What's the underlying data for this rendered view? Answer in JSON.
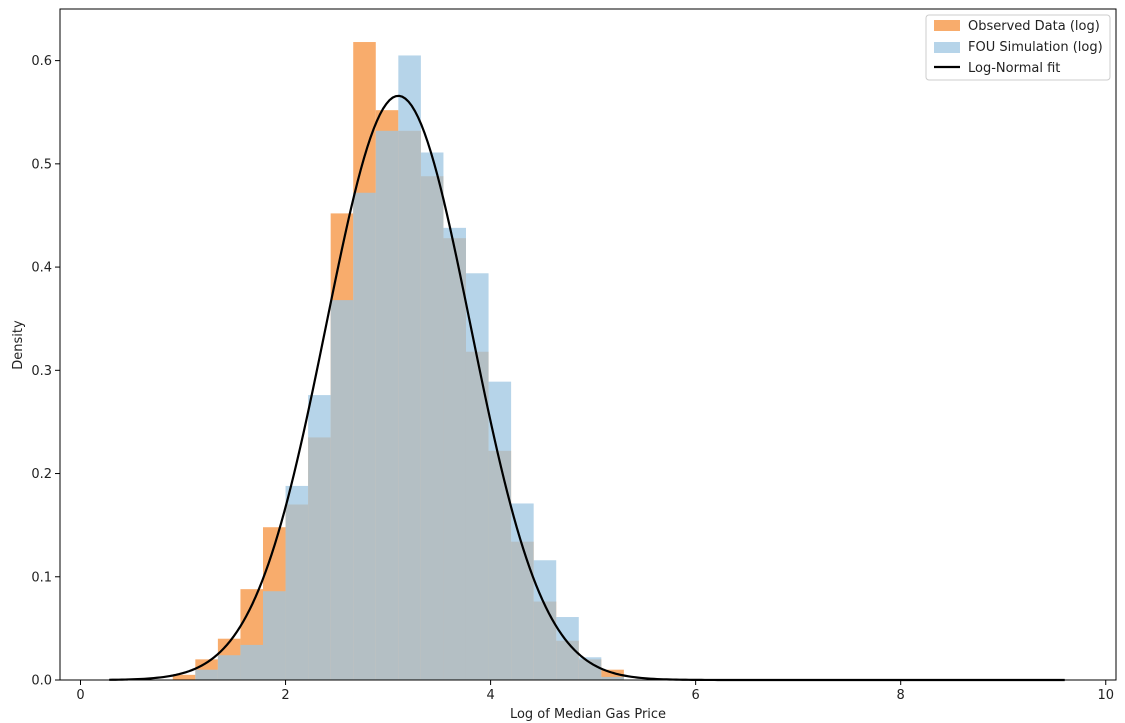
{
  "chart_data": {
    "type": "histogram",
    "xlabel": "Log of Median Gas Price",
    "ylabel": "Density",
    "xlim": [
      -0.2,
      10.1
    ],
    "ylim": [
      0,
      0.65
    ],
    "x_ticks": [
      0,
      2,
      4,
      6,
      8,
      10
    ],
    "y_ticks": [
      0.0,
      0.1,
      0.2,
      0.3,
      0.4,
      0.5,
      0.6
    ],
    "grid": false,
    "legend_position": "top-right",
    "bin_edges": [
      0.9,
      1.12,
      1.34,
      1.56,
      1.78,
      2.0,
      2.22,
      2.44,
      2.66,
      2.88,
      3.1,
      3.32,
      3.54,
      3.76,
      3.98,
      4.2,
      4.42,
      4.64,
      4.86,
      5.08,
      5.3
    ],
    "series": [
      {
        "name": "Observed Data (log)",
        "kind": "bar",
        "color": "#f7a35c",
        "alpha": 0.9,
        "values": [
          0.005,
          0.02,
          0.04,
          0.088,
          0.148,
          0.17,
          0.235,
          0.452,
          0.618,
          0.552,
          0.532,
          0.488,
          0.428,
          0.318,
          0.222,
          0.134,
          0.076,
          0.038,
          0.02,
          0.01
        ]
      },
      {
        "name": "FOU Simulation (log)",
        "kind": "bar",
        "color": "#9ec5e1",
        "alpha": 0.75,
        "values": [
          0.0,
          0.01,
          0.024,
          0.034,
          0.086,
          0.188,
          0.276,
          0.368,
          0.472,
          0.532,
          0.605,
          0.511,
          0.438,
          0.394,
          0.289,
          0.171,
          0.116,
          0.061,
          0.022,
          0.003
        ]
      },
      {
        "name": "Log-Normal fit",
        "kind": "line",
        "color": "#000000",
        "mu": 3.1,
        "sigma": 0.705,
        "x_range": [
          0.28,
          9.6
        ]
      }
    ]
  }
}
